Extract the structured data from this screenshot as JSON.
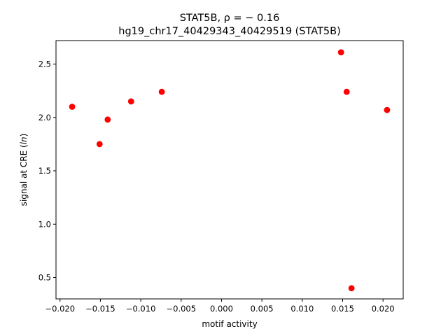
{
  "chart_data": {
    "type": "scatter",
    "title_line1": "STAT5B, ρ = − 0.16",
    "title_line2": "hg19_chr17_40429343_40429519 (STAT5B)",
    "xlabel": "motif activity",
    "ylabel_prefix": "signal at CRE (",
    "ylabel_italic": "ln",
    "ylabel_suffix": ")",
    "xlim": [
      -0.0205,
      0.0225
    ],
    "ylim": [
      0.3,
      2.72
    ],
    "xticks": [
      -0.02,
      -0.015,
      -0.01,
      -0.005,
      0.0,
      0.005,
      0.01,
      0.015,
      0.02
    ],
    "xtick_labels": [
      "−0.020",
      "−0.015",
      "−0.010",
      "−0.005",
      "0.000",
      "0.005",
      "0.010",
      "0.015",
      "0.020"
    ],
    "yticks": [
      0.5,
      1.0,
      1.5,
      2.0,
      2.5
    ],
    "ytick_labels": [
      "0.5",
      "1.0",
      "1.5",
      "2.0",
      "2.5"
    ],
    "marker_color": "#ff0000",
    "grid": false,
    "points": [
      {
        "x": -0.0185,
        "y": 2.1
      },
      {
        "x": -0.0151,
        "y": 1.75
      },
      {
        "x": -0.0141,
        "y": 1.98
      },
      {
        "x": -0.0112,
        "y": 2.15
      },
      {
        "x": -0.0074,
        "y": 2.24
      },
      {
        "x": 0.0148,
        "y": 2.61
      },
      {
        "x": 0.0155,
        "y": 2.24
      },
      {
        "x": 0.0161,
        "y": 0.4
      },
      {
        "x": 0.0205,
        "y": 2.07
      }
    ]
  }
}
